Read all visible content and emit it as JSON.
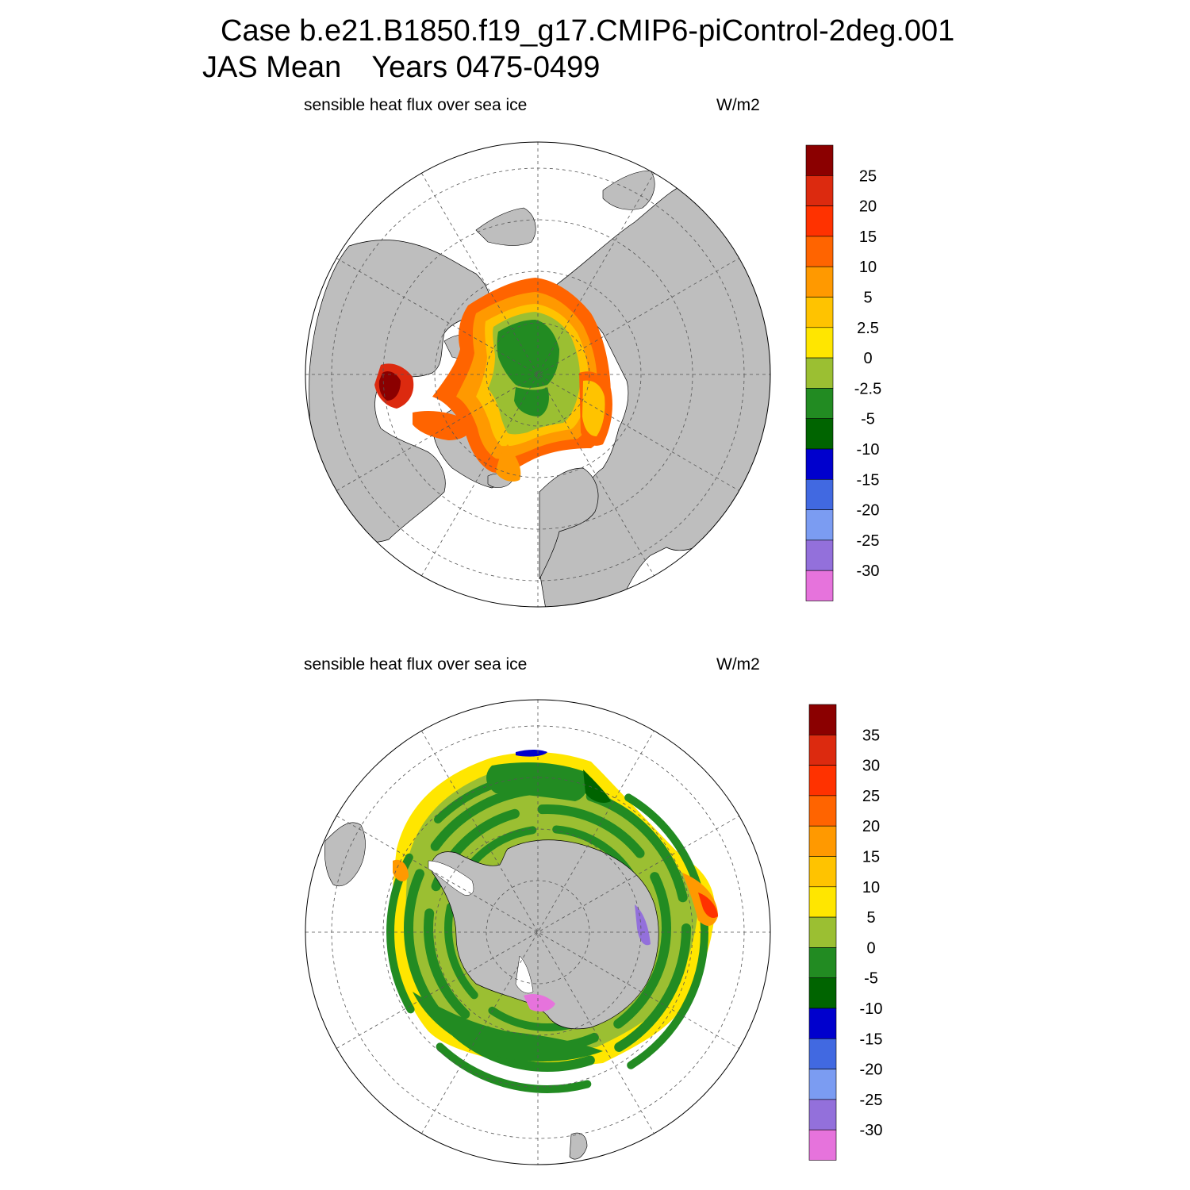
{
  "figure": {
    "title_case": "Case b.e21.B1850.f19_g17.CMIP6-piControl-2deg.001",
    "title_season": "JAS Mean",
    "title_years": "Years 0475-0499"
  },
  "colors": {
    "land": "#bebebe",
    "background": "#ffffff",
    "levels": [
      "#e673dc",
      "#9370db",
      "#7b9cf2",
      "#4169e1",
      "#0000cd",
      "#006400",
      "#228b22",
      "#9bbf32",
      "#ffe600",
      "#ffc300",
      "#ff9900",
      "#ff6400",
      "#ff3200",
      "#dc2a0f",
      "#8b0000"
    ]
  },
  "panels": [
    {
      "id": "north",
      "label": "sensible heat flux over sea ice",
      "units": "W/m2",
      "colorbar_labels": [
        "-30",
        "-25",
        "-20",
        "-15",
        "-10",
        "-5",
        "-2.5",
        "0",
        "2.5",
        "5",
        "10",
        "15",
        "20",
        "25"
      ]
    },
    {
      "id": "south",
      "label": "sensible heat flux over sea ice",
      "units": "W/m2",
      "colorbar_labels": [
        "-30",
        "-25",
        "-20",
        "-15",
        "-10",
        "-5",
        "0",
        "5",
        "10",
        "15",
        "20",
        "25",
        "30",
        "35"
      ]
    }
  ]
}
